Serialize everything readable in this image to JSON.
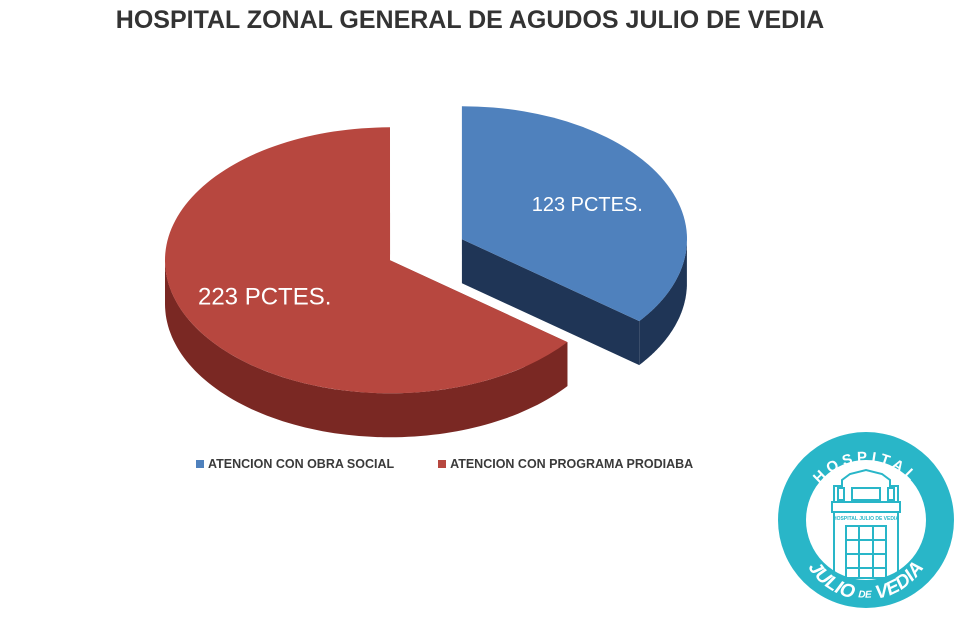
{
  "chart_data": {
    "type": "pie",
    "title": "HOSPITAL ZONAL GENERAL DE AGUDOS JULIO DE VEDIA",
    "three_d": true,
    "exploded": true,
    "legend_position": "bottom",
    "series": [
      {
        "name": "ATENCION CON OBRA SOCIAL",
        "value": 123,
        "label": "123 PCTES.",
        "color": "#4f81bd",
        "side_color": "#1f3556"
      },
      {
        "name": "ATENCION CON PROGRAMA PRODIABA",
        "value": 223,
        "label": "223 PCTES.",
        "color": "#b7473f",
        "side_color": "#7a2823"
      }
    ]
  },
  "logo": {
    "text_top": "HOSPITAL",
    "text_bottom_1": "JULIO",
    "text_bottom_de": "DE",
    "text_bottom_2": "VEDIA",
    "building_text": "HOSPITAL JULIO DE VEDIA",
    "color": "#29b6c8"
  }
}
